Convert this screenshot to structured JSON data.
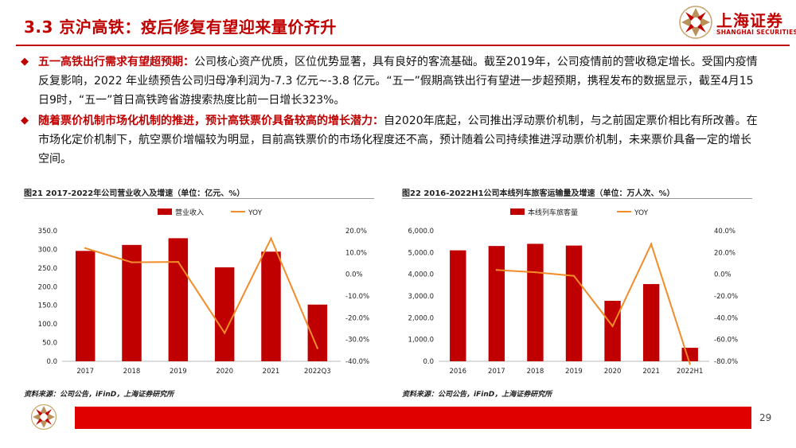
{
  "page_title": "3.3 京沪高铁：疫后修复有望迎来量价齐升",
  "logo": {
    "cn": "上海证券",
    "en": "SHANGHAI SECURITIES"
  },
  "colors": {
    "brand": "#c00000",
    "bar": "#c00000",
    "line": "#f28c28",
    "footer": "#e00000"
  },
  "bullets": [
    {
      "highlight": "五一高铁出行需求有望超预期：",
      "text": "公司核心资产优质，区位优势显著，具有良好的客流基础。截至2019年，公司疫情前的营收稳定增长。受国内疫情反复影响，2022 年业绩预告公司归母净利润为-7.3 亿元~-3.8 亿元。“五一”假期高铁出行有望进一步超预期，携程发布的数据显示，截至4月15日9时，“五一”首日高铁跨省游搜索热度比前一日增长323%。"
    },
    {
      "highlight": "随着票价机制市场化机制的推进，预计高铁票价具备较高的增长潜力：",
      "text": "自2020年底起，公司推出浮动票价机制，与之前固定票价相比有所改善。在市场化定价机制下，航空票价增幅较为明显，目前高铁票价的市场化程度还不高，预计随着公司持续推进浮动票价机制，未来票价具备一定的增长空间。"
    }
  ],
  "chart_data": [
    {
      "type": "bar",
      "title": "图21 2017-2022年公司营业收入及增速（单位：亿元、%）",
      "categories": [
        "2017",
        "2018",
        "2019",
        "2020",
        "2021",
        "2022Q3"
      ],
      "series": [
        {
          "name": "营业收入",
          "type": "bar",
          "axis": "left",
          "values": [
            296,
            312,
            330,
            252,
            294,
            152
          ]
        },
        {
          "name": "YOY",
          "type": "line",
          "axis": "right",
          "values": [
            12.0,
            5.5,
            5.7,
            -27.0,
            16.5,
            -34.0
          ]
        }
      ],
      "y_left": {
        "min": 0,
        "max": 350,
        "step": 50,
        "ticks": [
          "0.0",
          "50.0",
          "100.0",
          "150.0",
          "200.0",
          "250.0",
          "300.0",
          "350.0"
        ]
      },
      "y_right": {
        "min": -40,
        "max": 20,
        "step": 10,
        "ticks": [
          "-40.0%",
          "-30.0%",
          "-20.0%",
          "-10.0%",
          "0.0%",
          "10.0%",
          "20.0%"
        ]
      },
      "legend_position": "top",
      "source": "资料来源：公司公告，iFinD，上海证券研究所"
    },
    {
      "type": "bar",
      "title": "图22 2016-2022H1公司本线列车旅客运输量及增速（单位：万人次、%）",
      "categories": [
        "2016",
        "2017",
        "2018",
        "2019",
        "2020",
        "2021",
        "2022H1"
      ],
      "series": [
        {
          "name": "本线列车旅客量",
          "type": "bar",
          "axis": "left",
          "values": [
            5100,
            5300,
            5400,
            5320,
            2780,
            3550,
            620
          ]
        },
        {
          "name": "YOY",
          "type": "line",
          "axis": "right",
          "values": [
            null,
            3.9,
            1.9,
            -1.5,
            -47.7,
            27.7,
            -82.5
          ]
        }
      ],
      "y_left": {
        "min": 0,
        "max": 6000,
        "step": 1000,
        "ticks": [
          "0.0",
          "1,000.0",
          "2,000.0",
          "3,000.0",
          "4,000.0",
          "5,000.0",
          "6,000.0"
        ]
      },
      "y_right": {
        "min": -80,
        "max": 40,
        "step": 20,
        "ticks": [
          "-80.0%",
          "-60.0%",
          "-40.0%",
          "-20.0%",
          "0.0%",
          "20.0%",
          "40.0%"
        ]
      },
      "legend_position": "top",
      "source": "资料来源：公司公告，iFinD，上海证券研究所"
    }
  ],
  "page_number": "29"
}
